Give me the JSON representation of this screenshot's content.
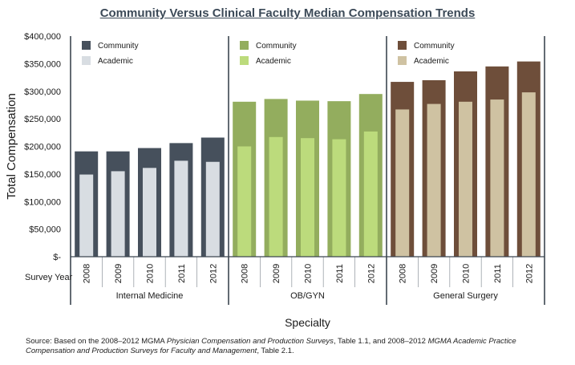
{
  "chart_data": {
    "type": "bar",
    "title": "Community Versus Clinical Faculty Median Compensation Trends",
    "ylabel": "Total Compensation",
    "xlabel": "Specialty",
    "year_row_label": "Survey Year",
    "ylim": [
      0,
      400000
    ],
    "ytick_labels": [
      "$-",
      "$50,000",
      "$100,000",
      "$150,000",
      "$200,000",
      "$250,000",
      "$300,000",
      "$350,000",
      "$400,000"
    ],
    "ytick_values": [
      0,
      50000,
      100000,
      150000,
      200000,
      250000,
      300000,
      350000,
      400000
    ],
    "categories": [
      "2008",
      "2009",
      "2010",
      "2011",
      "2012"
    ],
    "legend_placement": "top-left of each panel",
    "groups": [
      {
        "name": "Internal Medicine",
        "colors": {
          "community": "#46505c",
          "academic": "#d8dde2"
        },
        "series": [
          {
            "name": "Community",
            "values": [
              191000,
              191000,
              197000,
              206000,
              216000
            ]
          },
          {
            "name": "Academic",
            "values": [
              149000,
              155000,
              161000,
              174000,
              172000
            ]
          }
        ]
      },
      {
        "name": "OB/GYN",
        "colors": {
          "community": "#93ad5e",
          "academic": "#bcdb7c"
        },
        "series": [
          {
            "name": "Community",
            "values": [
              281000,
              286000,
              283000,
              282000,
              295000
            ]
          },
          {
            "name": "Academic",
            "values": [
              200000,
              217000,
              215000,
              213000,
              227000
            ]
          }
        ]
      },
      {
        "name": "General Surgery",
        "colors": {
          "community": "#6e4e3a",
          "academic": "#cfc2a2"
        },
        "series": [
          {
            "name": "Community",
            "values": [
              317000,
              320000,
              336000,
              345000,
              354000
            ]
          },
          {
            "name": "Academic",
            "values": [
              267000,
              277000,
              281000,
              285000,
              298000
            ]
          }
        ]
      }
    ]
  },
  "source": {
    "prefix": "Source: Based on the 2008–2012 MGMA ",
    "title1": "Physician Compensation and Production Surveys",
    "mid": ", Table 1.1, and 2008–2012 ",
    "title2": "MGMA Academic Practice Compensation and Production Surveys for Faculty and Management",
    "suffix": ", Table 2.1."
  }
}
